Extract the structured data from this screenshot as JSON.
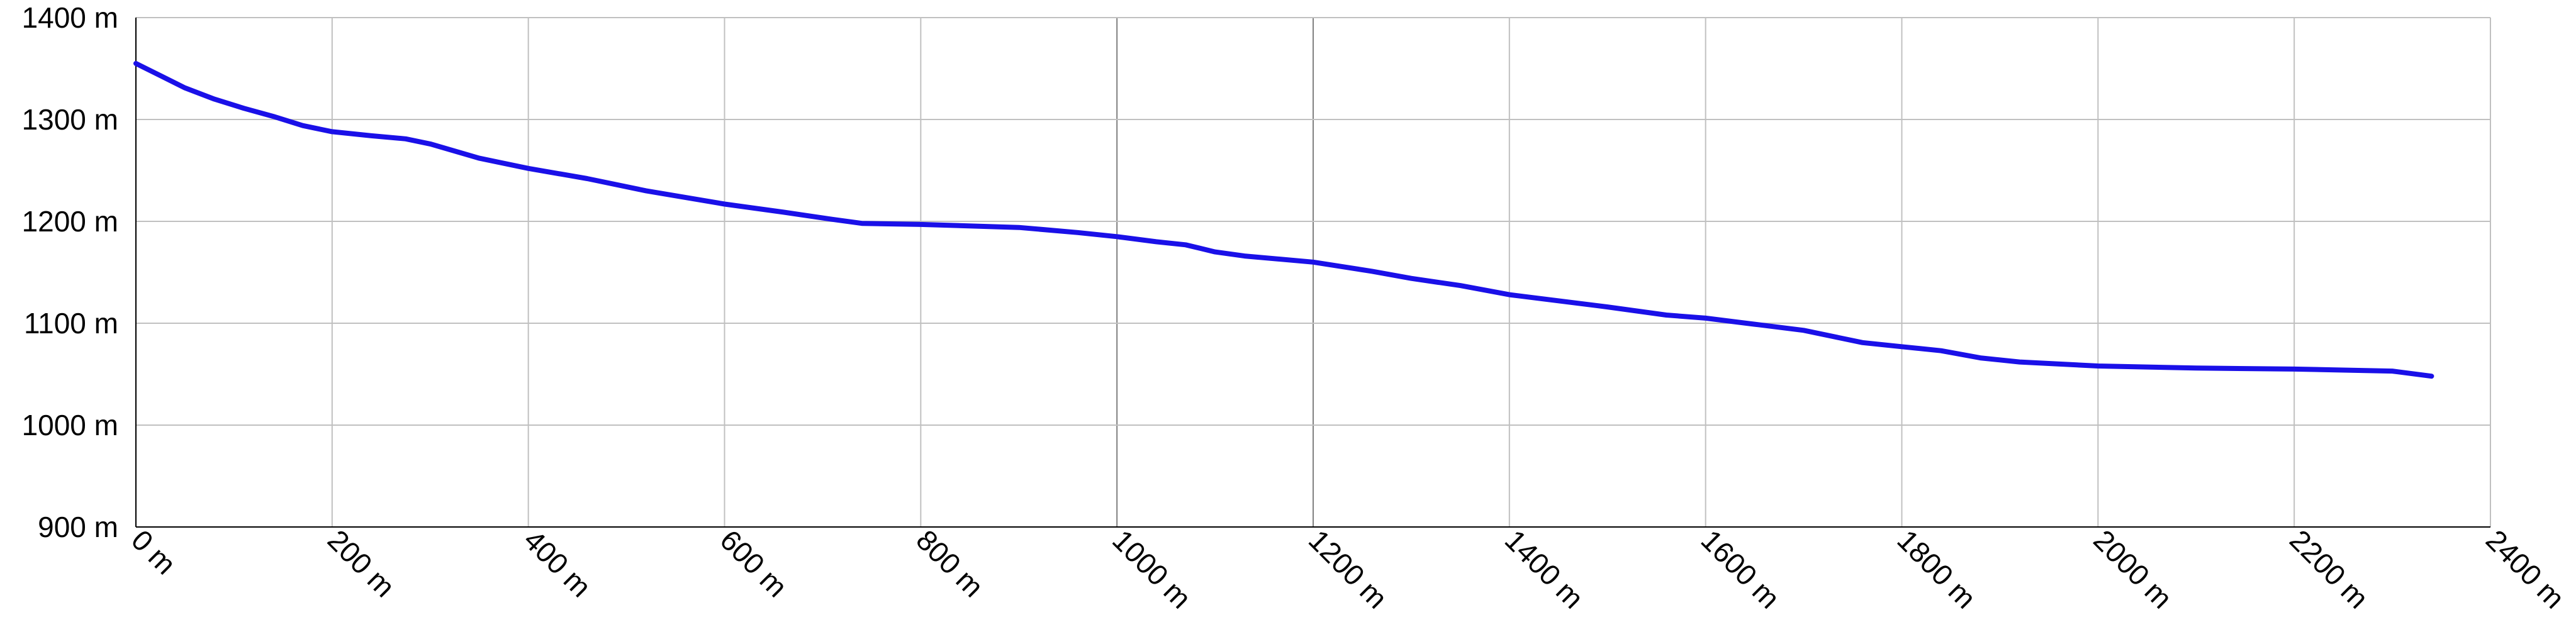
{
  "chart_data": {
    "type": "line",
    "title": "",
    "xlabel": "",
    "ylabel": "",
    "xlim": [
      0,
      2400
    ],
    "ylim": [
      900,
      1400
    ],
    "x_ticks": [
      {
        "value": 0,
        "label": "0 m"
      },
      {
        "value": 200,
        "label": "200 m"
      },
      {
        "value": 400,
        "label": "400 m"
      },
      {
        "value": 600,
        "label": "600 m"
      },
      {
        "value": 800,
        "label": "800 m"
      },
      {
        "value": 1000,
        "label": "1000 m"
      },
      {
        "value": 1200,
        "label": "1200 m"
      },
      {
        "value": 1400,
        "label": "1400 m"
      },
      {
        "value": 1600,
        "label": "1600 m"
      },
      {
        "value": 1800,
        "label": "1800 m"
      },
      {
        "value": 2000,
        "label": "2000 m"
      },
      {
        "value": 2200,
        "label": "2200 m"
      },
      {
        "value": 2400,
        "label": "2400 m"
      }
    ],
    "y_ticks": [
      {
        "value": 900,
        "label": "900 m"
      },
      {
        "value": 1000,
        "label": "1000 m"
      },
      {
        "value": 1100,
        "label": "1100 m"
      },
      {
        "value": 1200,
        "label": "1200 m"
      },
      {
        "value": 1300,
        "label": "1300 m"
      },
      {
        "value": 1400,
        "label": "1400 m"
      }
    ],
    "grid": true,
    "colors": {
      "line": "#1a10e8",
      "grid": "#c0c0c0",
      "grid_major": "#808080",
      "axis": "#000000"
    },
    "series": [
      {
        "x": [
          0,
          25,
          50,
          80,
          110,
          140,
          170,
          200,
          240,
          275,
          300,
          350,
          400,
          460,
          520,
          600,
          660,
          710,
          740,
          800,
          900,
          960,
          1000,
          1040,
          1070,
          1100,
          1130,
          1200,
          1260,
          1300,
          1350,
          1400,
          1500,
          1560,
          1600,
          1650,
          1700,
          1730,
          1760,
          1800,
          1840,
          1880,
          1920,
          2000,
          2100,
          2200,
          2250,
          2300,
          2340
        ],
        "y": [
          1355,
          1343,
          1331,
          1320,
          1311,
          1303,
          1294,
          1288,
          1284,
          1281,
          1276,
          1262,
          1252,
          1242,
          1230,
          1217,
          1209,
          1202,
          1198,
          1197,
          1194,
          1189,
          1185,
          1180,
          1177,
          1170,
          1166,
          1160,
          1151,
          1144,
          1137,
          1128,
          1116,
          1108,
          1105,
          1099,
          1093,
          1087,
          1081,
          1077,
          1073,
          1066,
          1062,
          1058,
          1056,
          1055,
          1054,
          1053,
          1048
        ]
      }
    ]
  }
}
